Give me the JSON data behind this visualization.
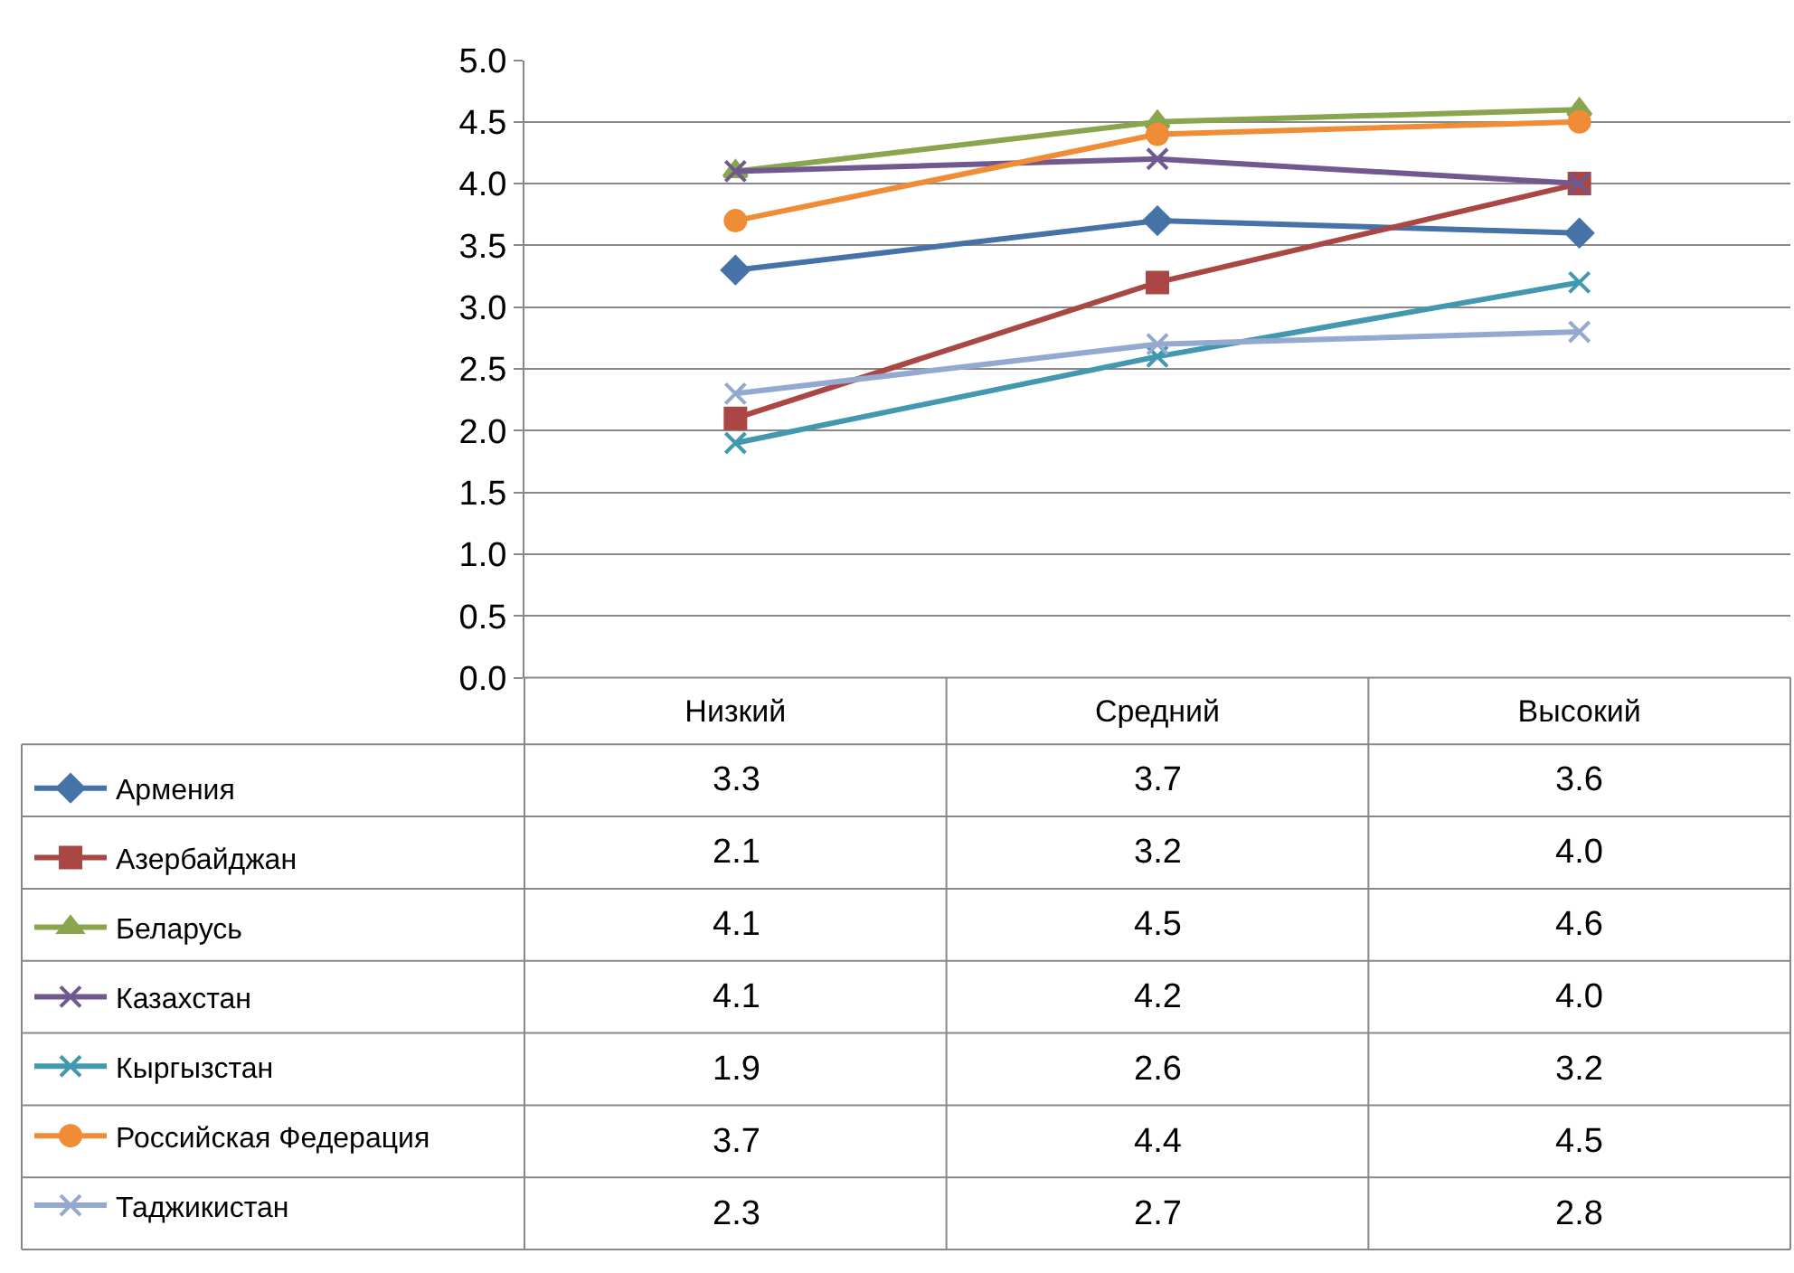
{
  "chart_data": {
    "type": "line",
    "categories": [
      "Низкий",
      "Средний",
      "Высокий"
    ],
    "series": [
      {
        "name": "Армения",
        "color": "#4572a7",
        "marker": "diamond",
        "values": [
          3.3,
          3.7,
          3.6
        ],
        "value_labels": [
          "3.3",
          "3.7",
          "3.6"
        ]
      },
      {
        "name": "Азербайджан",
        "color": "#aa4643",
        "marker": "square",
        "values": [
          2.1,
          3.2,
          4.0
        ],
        "value_labels": [
          "2.1",
          "3.2",
          "4.0"
        ]
      },
      {
        "name": "Беларусь",
        "color": "#89a54e",
        "marker": "triangle",
        "values": [
          4.1,
          4.5,
          4.6
        ],
        "value_labels": [
          "4.1",
          "4.5",
          "4.6"
        ]
      },
      {
        "name": "Казахстан",
        "color": "#71588f",
        "marker": "cross",
        "values": [
          4.1,
          4.2,
          4.0
        ],
        "value_labels": [
          "4.1",
          "4.2",
          "4.0"
        ]
      },
      {
        "name": "Кыргызстан",
        "color": "#4198af",
        "marker": "cross",
        "values": [
          1.9,
          2.6,
          3.2
        ],
        "value_labels": [
          "1.9",
          "2.6",
          "3.2"
        ]
      },
      {
        "name": "Российская Федерация",
        "color": "#f08c36",
        "marker": "circle",
        "values": [
          3.7,
          4.4,
          4.5
        ],
        "value_labels": [
          "3.7",
          "4.4",
          "4.5"
        ]
      },
      {
        "name": "Таджикистан",
        "color": "#93a9cf",
        "marker": "cross",
        "values": [
          2.3,
          2.7,
          2.8
        ],
        "value_labels": [
          "2.3",
          "2.7",
          "2.8"
        ]
      }
    ],
    "ylim": [
      0,
      5
    ],
    "yticks": [
      {
        "value": 0,
        "label": "0.0"
      },
      {
        "value": 0.5,
        "label": "0.5"
      },
      {
        "value": 1,
        "label": "1.0"
      },
      {
        "value": 1.5,
        "label": "1.5"
      },
      {
        "value": 2,
        "label": "2.0"
      },
      {
        "value": 2.5,
        "label": "2.5"
      },
      {
        "value": 3,
        "label": "3.0"
      },
      {
        "value": 3.5,
        "label": "3.5"
      },
      {
        "value": 4,
        "label": "4.0"
      },
      {
        "value": 4.5,
        "label": "4.5"
      },
      {
        "value": 5,
        "label": "5.0"
      }
    ],
    "grid": "y",
    "legend": "bottom left",
    "line_style": "solid"
  }
}
